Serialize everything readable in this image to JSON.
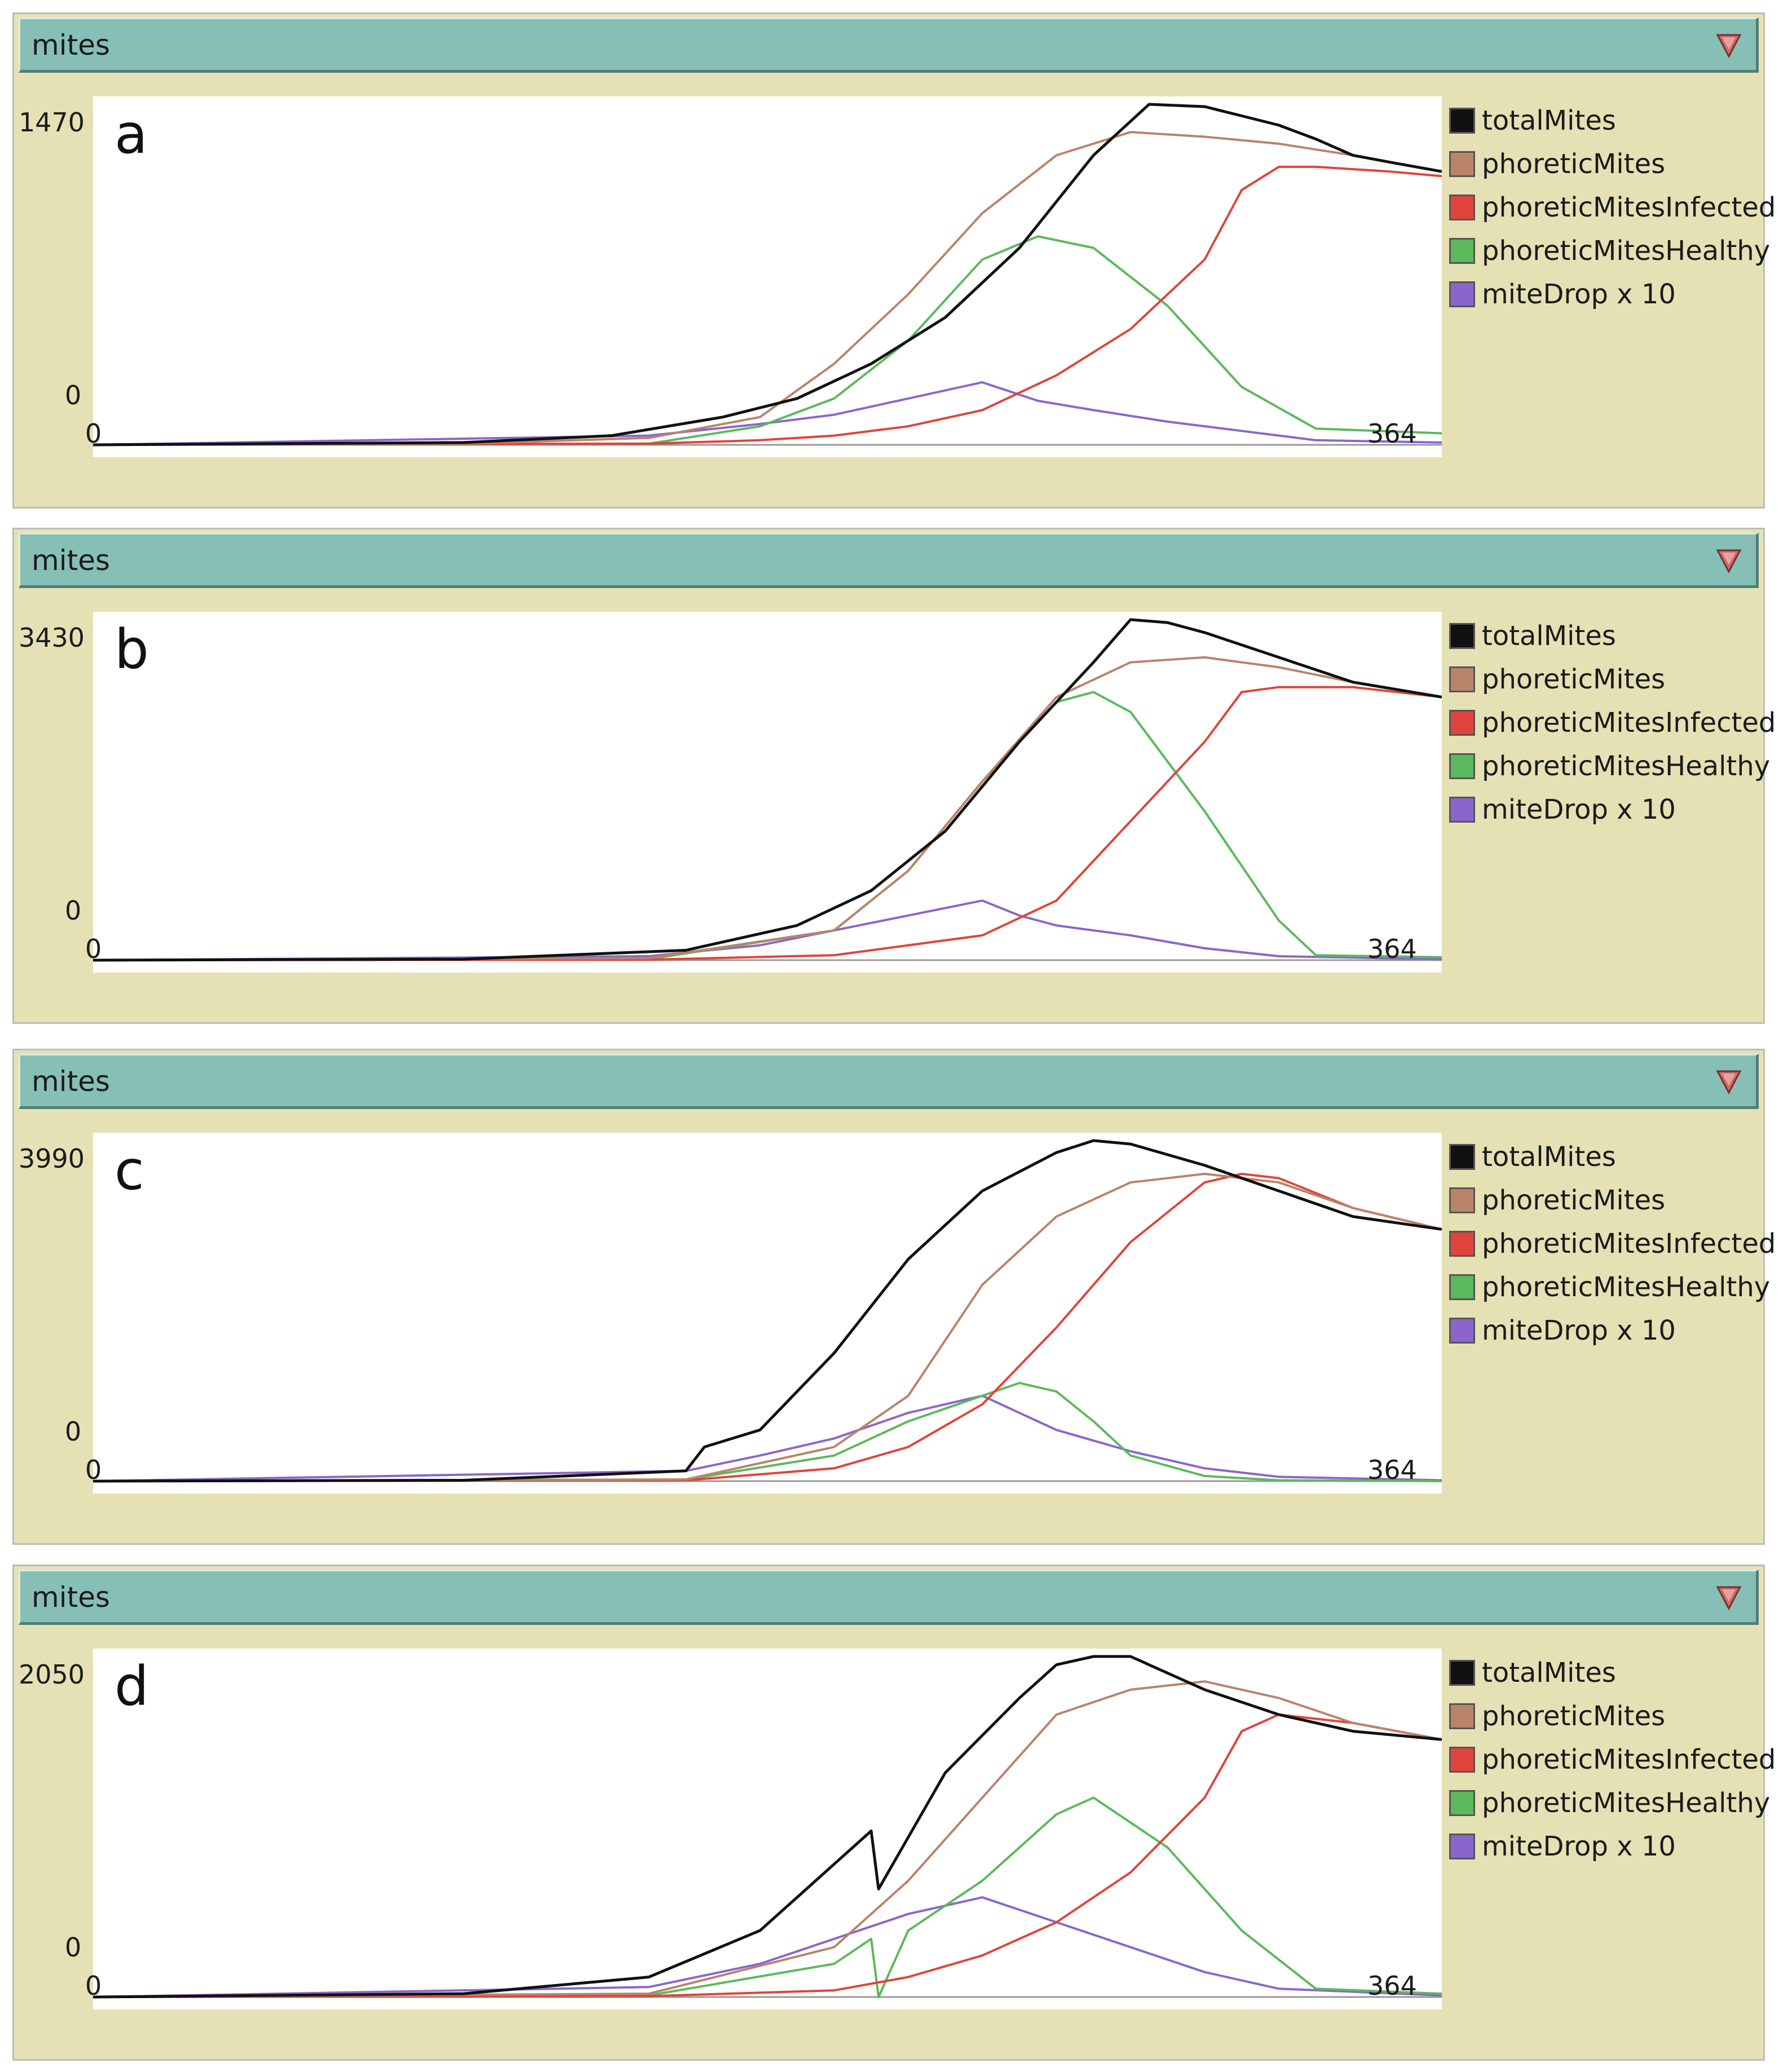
{
  "colors": {
    "totalMites": "#111111",
    "phoreticMites": "#b8846a",
    "phoreticMitesInfected": "#e0443c",
    "phoreticMitesHealthy": "#5cb85c",
    "miteDrop": "#8a66cc",
    "panel_bg": "#e6e1b4",
    "titlebar_bg": "#86bfb5",
    "dropdown_arrow": "#cc6a6a"
  },
  "legend": [
    {
      "label": "totalMites",
      "color": "#111111"
    },
    {
      "label": "phoreticMites",
      "color": "#b8846a"
    },
    {
      "label": "phoreticMitesInfected",
      "color": "#e0443c"
    },
    {
      "label": "phoreticMitesHealthy",
      "color": "#5cb85c"
    },
    {
      "label": "miteDrop x 10",
      "color": "#8a66cc"
    }
  ],
  "panels": [
    {
      "title": "mites",
      "letter": "a",
      "ymax_label": "1470",
      "ymin_label": "0",
      "xmin_label": "0",
      "xmax_label": "364"
    },
    {
      "title": "mites",
      "letter": "b",
      "ymax_label": "3430",
      "ymin_label": "0",
      "xmin_label": "0",
      "xmax_label": "364"
    },
    {
      "title": "mites",
      "letter": "c",
      "ymax_label": "3990",
      "ymin_label": "0",
      "xmin_label": "0",
      "xmax_label": "364"
    },
    {
      "title": "mites",
      "letter": "d",
      "ymax_label": "2050",
      "ymin_label": "0",
      "xmin_label": "0",
      "xmax_label": "364"
    }
  ],
  "chart_data": [
    {
      "type": "line",
      "title": "mites",
      "xlim": [
        0,
        364
      ],
      "ylim": [
        0,
        1470
      ],
      "series": [
        {
          "name": "totalMites",
          "x": [
            0,
            50,
            100,
            140,
            170,
            190,
            210,
            230,
            250,
            270,
            285,
            300,
            310,
            320,
            330,
            340,
            350,
            364
          ],
          "y": [
            0,
            5,
            10,
            40,
            120,
            200,
            350,
            550,
            850,
            1250,
            1470,
            1460,
            1420,
            1380,
            1320,
            1250,
            1220,
            1180
          ]
        },
        {
          "name": "phoreticMites",
          "x": [
            0,
            100,
            150,
            180,
            200,
            220,
            240,
            260,
            280,
            300,
            320,
            340,
            350,
            364
          ],
          "y": [
            0,
            5,
            30,
            120,
            350,
            650,
            1000,
            1250,
            1350,
            1330,
            1300,
            1250,
            1220,
            1180
          ]
        },
        {
          "name": "phoreticMitesInfected",
          "x": [
            0,
            150,
            180,
            200,
            220,
            240,
            260,
            280,
            300,
            310,
            320,
            330,
            350,
            364
          ],
          "y": [
            0,
            5,
            20,
            40,
            80,
            150,
            300,
            500,
            800,
            1100,
            1200,
            1200,
            1180,
            1160
          ]
        },
        {
          "name": "phoreticMitesHealthy",
          "x": [
            0,
            150,
            180,
            200,
            220,
            240,
            255,
            270,
            290,
            310,
            330,
            364
          ],
          "y": [
            0,
            5,
            80,
            200,
            450,
            800,
            900,
            850,
            600,
            250,
            70,
            50
          ]
        },
        {
          "name": "miteDrop x 10",
          "x": [
            0,
            150,
            180,
            200,
            220,
            240,
            255,
            270,
            290,
            310,
            330,
            364
          ],
          "y": [
            0,
            40,
            90,
            130,
            200,
            270,
            190,
            150,
            100,
            60,
            20,
            10
          ]
        }
      ]
    },
    {
      "type": "line",
      "title": "mites",
      "xlim": [
        0,
        364
      ],
      "ylim": [
        0,
        3430
      ],
      "series": [
        {
          "name": "totalMites",
          "x": [
            0,
            100,
            160,
            190,
            210,
            230,
            250,
            270,
            280,
            290,
            300,
            320,
            340,
            364
          ],
          "y": [
            0,
            10,
            100,
            350,
            700,
            1300,
            2200,
            3000,
            3430,
            3400,
            3300,
            3050,
            2800,
            2650
          ]
        },
        {
          "name": "phoreticMites",
          "x": [
            0,
            150,
            200,
            220,
            240,
            260,
            280,
            300,
            320,
            340,
            364
          ],
          "y": [
            0,
            20,
            300,
            900,
            1800,
            2650,
            3000,
            3050,
            2950,
            2800,
            2650
          ]
        },
        {
          "name": "phoreticMitesInfected",
          "x": [
            0,
            150,
            200,
            240,
            260,
            280,
            300,
            310,
            320,
            340,
            364
          ],
          "y": [
            0,
            5,
            50,
            250,
            600,
            1400,
            2200,
            2700,
            2750,
            2750,
            2650
          ]
        },
        {
          "name": "phoreticMitesHealthy",
          "x": [
            0,
            150,
            200,
            220,
            240,
            260,
            270,
            280,
            300,
            320,
            330,
            364
          ],
          "y": [
            0,
            10,
            300,
            900,
            1800,
            2600,
            2700,
            2500,
            1500,
            400,
            50,
            30
          ]
        },
        {
          "name": "miteDrop x 10",
          "x": [
            0,
            150,
            180,
            200,
            220,
            240,
            250,
            260,
            280,
            300,
            320,
            364
          ],
          "y": [
            0,
            40,
            150,
            300,
            450,
            600,
            450,
            350,
            250,
            120,
            40,
            10
          ]
        }
      ]
    },
    {
      "type": "line",
      "title": "mites",
      "xlim": [
        0,
        364
      ],
      "ylim": [
        0,
        3990
      ],
      "series": [
        {
          "name": "totalMites",
          "x": [
            0,
            100,
            160,
            165,
            180,
            200,
            220,
            240,
            260,
            270,
            280,
            300,
            320,
            340,
            364
          ],
          "y": [
            0,
            10,
            120,
            400,
            600,
            1500,
            2600,
            3400,
            3850,
            3990,
            3950,
            3700,
            3400,
            3100,
            2950
          ]
        },
        {
          "name": "phoreticMites",
          "x": [
            0,
            160,
            200,
            220,
            240,
            260,
            280,
            300,
            310,
            320,
            340,
            364
          ],
          "y": [
            0,
            20,
            400,
            1000,
            2300,
            3100,
            3500,
            3600,
            3550,
            3500,
            3200,
            2950
          ]
        },
        {
          "name": "phoreticMitesInfected",
          "x": [
            0,
            160,
            200,
            220,
            240,
            260,
            280,
            300,
            310,
            320,
            340,
            364
          ],
          "y": [
            0,
            10,
            150,
            400,
            900,
            1800,
            2800,
            3500,
            3600,
            3550,
            3200,
            2950
          ]
        },
        {
          "name": "phoreticMitesHealthy",
          "x": [
            0,
            160,
            200,
            220,
            240,
            250,
            260,
            270,
            280,
            300,
            320,
            364
          ],
          "y": [
            0,
            20,
            300,
            700,
            1000,
            1150,
            1050,
            700,
            300,
            60,
            10,
            0
          ]
        },
        {
          "name": "miteDrop x 10",
          "x": [
            0,
            160,
            180,
            200,
            220,
            240,
            250,
            260,
            280,
            300,
            320,
            364
          ],
          "y": [
            0,
            120,
            300,
            500,
            800,
            1000,
            800,
            600,
            350,
            150,
            50,
            10
          ]
        }
      ]
    },
    {
      "type": "line",
      "title": "mites",
      "xlim": [
        0,
        364
      ],
      "ylim": [
        0,
        2050
      ],
      "series": [
        {
          "name": "totalMites",
          "x": [
            0,
            100,
            150,
            180,
            200,
            210,
            212,
            230,
            250,
            260,
            270,
            280,
            300,
            320,
            340,
            364
          ],
          "y": [
            0,
            20,
            120,
            400,
            800,
            1000,
            650,
            1350,
            1800,
            2000,
            2050,
            2050,
            1850,
            1700,
            1600,
            1550
          ]
        },
        {
          "name": "phoreticMites",
          "x": [
            0,
            150,
            200,
            220,
            240,
            260,
            280,
            300,
            320,
            340,
            364
          ],
          "y": [
            0,
            20,
            300,
            700,
            1200,
            1700,
            1850,
            1900,
            1800,
            1650,
            1550
          ]
        },
        {
          "name": "phoreticMitesInfected",
          "x": [
            0,
            150,
            200,
            220,
            240,
            260,
            280,
            300,
            310,
            320,
            340,
            364
          ],
          "y": [
            0,
            5,
            40,
            120,
            250,
            450,
            750,
            1200,
            1600,
            1700,
            1650,
            1550
          ]
        },
        {
          "name": "phoreticMitesHealthy",
          "x": [
            0,
            150,
            200,
            210,
            212,
            220,
            240,
            260,
            270,
            290,
            310,
            330,
            364
          ],
          "y": [
            0,
            10,
            200,
            350,
            0,
            400,
            700,
            1100,
            1200,
            900,
            400,
            50,
            20
          ]
        },
        {
          "name": "miteDrop x 10",
          "x": [
            0,
            150,
            180,
            200,
            220,
            240,
            260,
            280,
            300,
            320,
            364
          ],
          "y": [
            0,
            60,
            200,
            350,
            500,
            600,
            450,
            300,
            150,
            50,
            10
          ]
        }
      ]
    }
  ]
}
